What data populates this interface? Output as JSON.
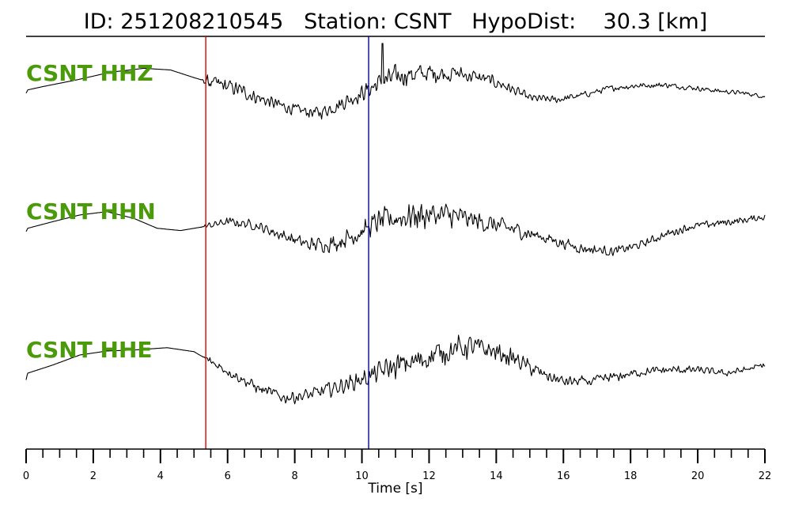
{
  "title": {
    "id_label": "ID:",
    "id_value": "251208210545",
    "station_label": "Station:",
    "station_value": "CSNT",
    "hypodist_label": "HypoDist:",
    "hypodist_value": "30.3",
    "hypodist_unit": "[km]"
  },
  "chart_data": {
    "type": "line",
    "xlabel": "Time [s]",
    "xlim": [
      0,
      22
    ],
    "x_ticks_major": [
      0,
      2,
      4,
      6,
      8,
      10,
      12,
      14,
      16,
      18,
      20,
      22
    ],
    "x_tick_minor_step": 0.5,
    "grid": false,
    "picks": [
      {
        "phase": "P",
        "time": 5.35,
        "color": "#e00000"
      },
      {
        "phase": "S",
        "time": 10.2,
        "color": "#0000cc"
      }
    ],
    "label_color": "#4a9a0a",
    "series": [
      {
        "name": "CSNT HHZ",
        "envelope": [
          [
            0,
            0.05
          ],
          [
            0.05,
            0.15
          ],
          [
            0.5,
            0.25
          ],
          [
            1.5,
            0.45
          ],
          [
            2.5,
            0.68
          ],
          [
            3.5,
            0.8
          ],
          [
            4.3,
            0.75
          ],
          [
            5.0,
            0.52
          ],
          [
            5.4,
            0.4
          ],
          [
            6.2,
            0.2
          ],
          [
            7.2,
            -0.2
          ],
          [
            8.0,
            -0.45
          ],
          [
            8.7,
            -0.55
          ],
          [
            9.3,
            -0.3
          ],
          [
            10.0,
            0.05
          ],
          [
            10.6,
            0.4
          ],
          [
            11.2,
            0.6
          ],
          [
            12.0,
            0.65
          ],
          [
            12.8,
            0.65
          ],
          [
            13.6,
            0.5
          ],
          [
            14.2,
            0.3
          ],
          [
            15.0,
            -0.1
          ],
          [
            15.8,
            -0.15
          ],
          [
            16.6,
            0.0
          ],
          [
            17.4,
            0.2
          ],
          [
            18.2,
            0.28
          ],
          [
            19.0,
            0.3
          ],
          [
            19.8,
            0.22
          ],
          [
            20.6,
            0.12
          ],
          [
            21.4,
            0.05
          ],
          [
            22,
            -0.05
          ]
        ],
        "noise": [
          [
            5.2,
            0
          ],
          [
            5.4,
            0.22
          ],
          [
            6.0,
            0.28
          ],
          [
            8.0,
            0.2
          ],
          [
            10.0,
            0.3
          ],
          [
            11.0,
            0.42
          ],
          [
            13.0,
            0.28
          ],
          [
            14.5,
            0.18
          ],
          [
            16.0,
            0.12
          ],
          [
            22,
            0.07
          ]
        ],
        "spikes": [
          {
            "t": 10.62,
            "v": 1.55
          }
        ]
      },
      {
        "name": "CSNT HHN",
        "envelope": [
          [
            0,
            0.05
          ],
          [
            0.05,
            0.15
          ],
          [
            0.8,
            0.35
          ],
          [
            1.6,
            0.55
          ],
          [
            2.4,
            0.65
          ],
          [
            3.2,
            0.45
          ],
          [
            3.9,
            0.15
          ],
          [
            4.6,
            0.08
          ],
          [
            5.3,
            0.2
          ],
          [
            6.0,
            0.35
          ],
          [
            6.8,
            0.25
          ],
          [
            7.6,
            -0.05
          ],
          [
            8.4,
            -0.35
          ],
          [
            9.2,
            -0.3
          ],
          [
            9.9,
            0.0
          ],
          [
            10.5,
            0.35
          ],
          [
            11.5,
            0.55
          ],
          [
            12.5,
            0.55
          ],
          [
            13.5,
            0.35
          ],
          [
            14.5,
            0.12
          ],
          [
            15.5,
            -0.15
          ],
          [
            16.5,
            -0.45
          ],
          [
            17.5,
            -0.55
          ],
          [
            18.3,
            -0.35
          ],
          [
            19.0,
            -0.05
          ],
          [
            19.8,
            0.2
          ],
          [
            20.6,
            0.3
          ],
          [
            21.3,
            0.38
          ],
          [
            22,
            0.5
          ]
        ],
        "noise": [
          [
            5.2,
            0
          ],
          [
            5.4,
            0.12
          ],
          [
            7.5,
            0.2
          ],
          [
            10.0,
            0.35
          ],
          [
            11.5,
            0.55
          ],
          [
            13.0,
            0.4
          ],
          [
            14.5,
            0.28
          ],
          [
            16.0,
            0.2
          ],
          [
            18.0,
            0.15
          ],
          [
            22,
            0.12
          ]
        ],
        "spikes": []
      },
      {
        "name": "CSNT HHE",
        "envelope": [
          [
            0,
            -0.25
          ],
          [
            0.04,
            -0.05
          ],
          [
            0.8,
            0.2
          ],
          [
            1.6,
            0.5
          ],
          [
            2.4,
            0.62
          ],
          [
            3.2,
            0.65
          ],
          [
            4.2,
            0.72
          ],
          [
            5.0,
            0.6
          ],
          [
            5.5,
            0.3
          ],
          [
            6.2,
            -0.1
          ],
          [
            7.0,
            -0.55
          ],
          [
            7.7,
            -0.78
          ],
          [
            8.5,
            -0.7
          ],
          [
            9.3,
            -0.45
          ],
          [
            10.1,
            -0.2
          ],
          [
            10.8,
            0.1
          ],
          [
            11.6,
            0.3
          ],
          [
            12.4,
            0.6
          ],
          [
            13.2,
            0.75
          ],
          [
            13.9,
            0.62
          ],
          [
            14.6,
            0.35
          ],
          [
            15.3,
            -0.05
          ],
          [
            16.0,
            -0.3
          ],
          [
            16.8,
            -0.3
          ],
          [
            17.6,
            -0.15
          ],
          [
            18.4,
            0.0
          ],
          [
            19.2,
            0.05
          ],
          [
            20.0,
            0.05
          ],
          [
            20.8,
            -0.05
          ],
          [
            21.4,
            0.05
          ],
          [
            22,
            0.2
          ]
        ],
        "noise": [
          [
            5.2,
            0
          ],
          [
            5.4,
            0.15
          ],
          [
            7.5,
            0.22
          ],
          [
            10.0,
            0.3
          ],
          [
            11.0,
            0.45
          ],
          [
            13.0,
            0.45
          ],
          [
            14.5,
            0.3
          ],
          [
            16.0,
            0.2
          ],
          [
            22,
            0.1
          ]
        ],
        "spikes": []
      }
    ]
  }
}
